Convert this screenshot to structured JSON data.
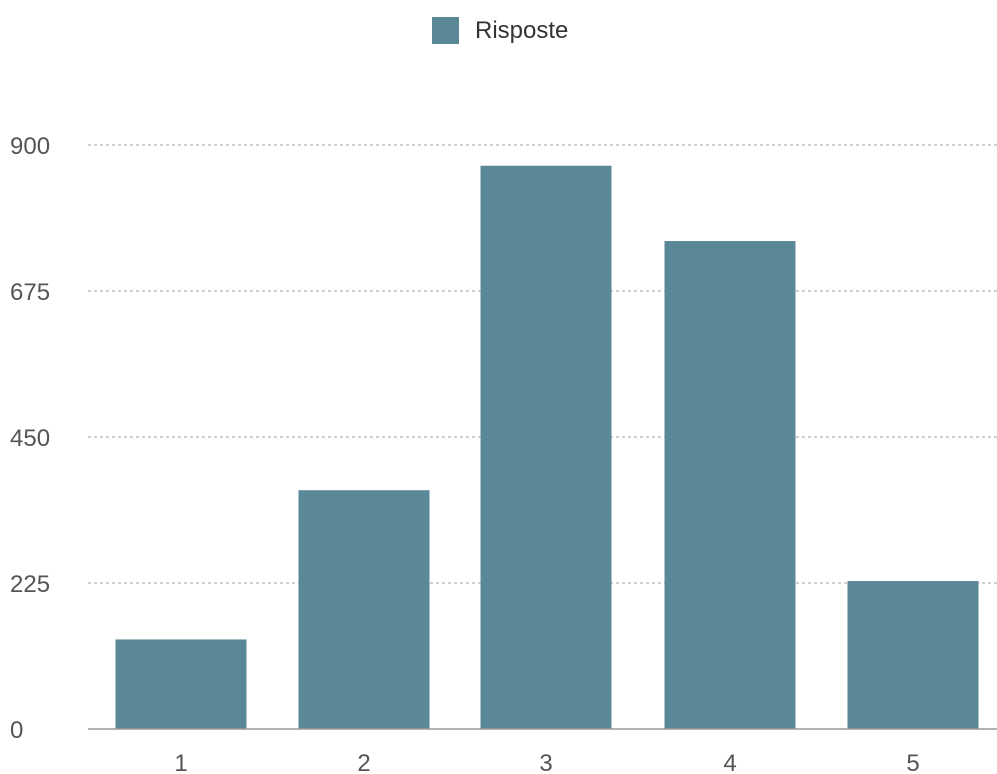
{
  "chart_data": {
    "type": "bar",
    "categories": [
      "1",
      "2",
      "3",
      "4",
      "5"
    ],
    "series": [
      {
        "name": "Risposte",
        "values": [
          138,
          368,
          868,
          752,
          228
        ],
        "color": "#5a8896"
      }
    ],
    "ylim": [
      0,
      900
    ],
    "yticks": [
      0,
      225,
      450,
      675,
      900
    ],
    "grid": true,
    "legend_position": "top-center",
    "title": "",
    "xlabel": "",
    "ylabel": ""
  }
}
